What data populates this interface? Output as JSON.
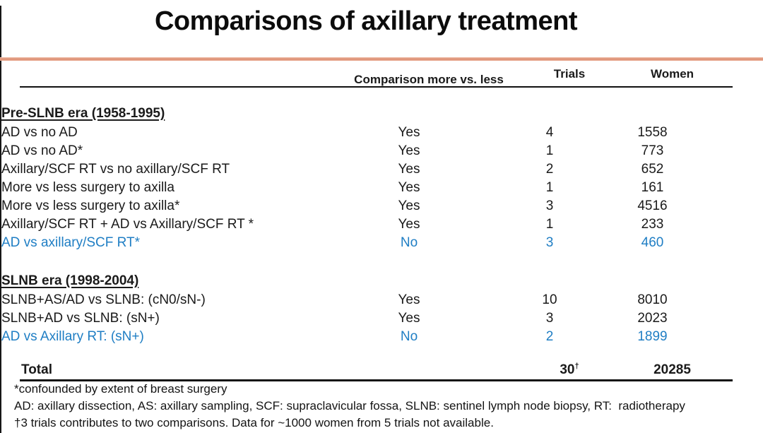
{
  "title": "Comparisons of axillary treatment",
  "colors": {
    "accent_line": "#dd8f73",
    "highlight_blue": "#1f7ec4",
    "text": "#1a1a1a"
  },
  "table": {
    "headers": {
      "comparison": "Comparison more vs. less",
      "trials": "Trials",
      "women": "Women"
    },
    "sections": [
      {
        "heading": "Pre-SLNB era (1958-1995)",
        "rows": [
          {
            "label": "AD vs no AD",
            "comparison": "Yes",
            "trials": "4",
            "women": "1558"
          },
          {
            "label": "AD vs no AD*",
            "comparison": "Yes",
            "trials": "1",
            "women": "773"
          },
          {
            "label": "Axillary/SCF RT vs no axillary/SCF RT",
            "comparison": "Yes",
            "trials": "2",
            "women": "652"
          },
          {
            "label": "More vs less surgery to axilla",
            "comparison": "Yes",
            "trials": "1",
            "women": "161"
          },
          {
            "label": "More vs less surgery to axilla*",
            "comparison": "Yes",
            "trials": "3",
            "women": "4516"
          },
          {
            "label": "Axillary/SCF RT + AD vs Axillary/SCF RT *",
            "comparison": "Yes",
            "trials": "1",
            "women": "233"
          },
          {
            "label": "AD vs axillary/SCF RT*",
            "comparison": "No",
            "trials": "3",
            "women": "460"
          }
        ]
      },
      {
        "heading": "SLNB era (1998-2004)",
        "rows": [
          {
            "label": "SLNB+AS/AD vs SLNB: (cN0/sN-)",
            "comparison": "Yes",
            "trials": "10",
            "women": "8010"
          },
          {
            "label": "SLNB+AD vs SLNB: (sN+)",
            "comparison": "Yes",
            "trials": "3",
            "women": "2023"
          },
          {
            "label": "AD vs Axillary RT: (sN+)",
            "comparison": "No",
            "trials": "2",
            "women": "1899"
          }
        ]
      }
    ],
    "total": {
      "label": "Total",
      "trials": "30",
      "trials_superscript": "†",
      "women": "20285"
    }
  },
  "footnotes": [
    "*confounded by extent of breast surgery",
    "AD: axillary dissection, AS: axillary sampling, SCF: supraclavicular fossa, SLNB: sentinel lymph node biopsy, RT:  radiotherapy",
    "†3 trials contributes to two comparisons. Data for ~1000 women from 5 trials not available."
  ]
}
